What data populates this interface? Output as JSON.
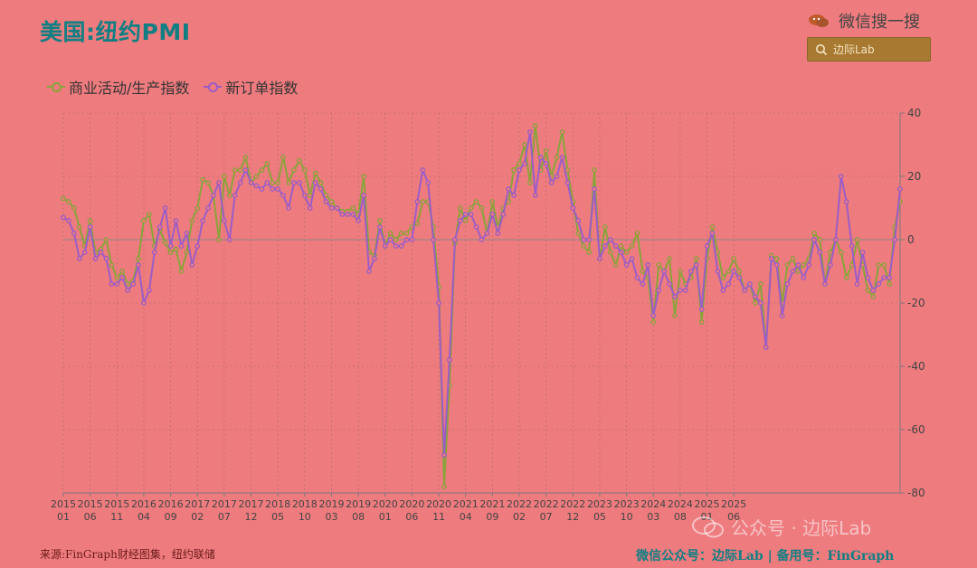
{
  "header": {
    "title": "美国:纽约PMI",
    "wechat_label": "微信搜一搜",
    "search_text": "边际Lab"
  },
  "legend": {
    "series1": "商业活动/生产指数",
    "series2": "新订单指数"
  },
  "footer": {
    "source": "来源:FinGraph财经图集，纽约联储",
    "right": "微信公众号：边际Lab  |  备用号：FinGraph",
    "watermark": "公众号 · 边际Lab"
  },
  "colors": {
    "series1": "#8aa33b",
    "series2": "#9b5dc7",
    "axis": "#7a7a7a",
    "title": "#0f7f83"
  },
  "icons": {
    "search": "search-icon",
    "wechat": "wechat-icon"
  },
  "chart_data": {
    "type": "line",
    "ylim": [
      -80,
      40
    ],
    "yticks": [
      40,
      20,
      0,
      -20,
      -40,
      -60,
      -80
    ],
    "xtick_labels": [
      {
        "year": "2015",
        "month": "01"
      },
      {
        "year": "2015",
        "month": "06"
      },
      {
        "year": "2015",
        "month": "11"
      },
      {
        "year": "2016",
        "month": "04"
      },
      {
        "year": "2016",
        "month": "09"
      },
      {
        "year": "2017",
        "month": "02"
      },
      {
        "year": "2017",
        "month": "07"
      },
      {
        "year": "2017",
        "month": "12"
      },
      {
        "year": "2018",
        "month": "05"
      },
      {
        "year": "2018",
        "month": "10"
      },
      {
        "year": "2019",
        "month": "03"
      },
      {
        "year": "2019",
        "month": "08"
      },
      {
        "year": "2020",
        "month": "01"
      },
      {
        "year": "2020",
        "month": "06"
      },
      {
        "year": "2020",
        "month": "11"
      },
      {
        "year": "2021",
        "month": "04"
      },
      {
        "year": "2021",
        "month": "09"
      },
      {
        "year": "2022",
        "month": "02"
      },
      {
        "year": "2022",
        "month": "07"
      },
      {
        "year": "2022",
        "month": "12"
      },
      {
        "year": "2023",
        "month": "05"
      },
      {
        "year": "2023",
        "month": "10"
      },
      {
        "year": "2024",
        "month": "03"
      },
      {
        "year": "2024",
        "month": "08"
      },
      {
        "year": "2025",
        "month": "01"
      },
      {
        "year": "2025",
        "month": "06"
      }
    ],
    "x_start": "2015-01",
    "series": [
      {
        "name": "商业活动/生产指数",
        "values": [
          13,
          12,
          10,
          4,
          -2,
          6,
          -4,
          -3,
          0,
          -8,
          -12,
          -10,
          -14,
          -13,
          -6,
          6,
          8,
          -2,
          3,
          -1,
          -4,
          -3,
          -10,
          -4,
          6,
          10,
          19,
          18,
          14,
          0,
          20,
          14,
          22,
          22,
          26,
          18,
          20,
          22,
          24,
          18,
          18,
          26,
          18,
          22,
          25,
          22,
          14,
          21,
          18,
          14,
          12,
          10,
          9,
          9,
          10,
          8,
          20,
          -4,
          -5,
          6,
          -2,
          2,
          0,
          2,
          2,
          4,
          5,
          12,
          12,
          4,
          -15,
          -78,
          -46,
          -1,
          10,
          6,
          10,
          12,
          10,
          2,
          12,
          4,
          10,
          12,
          22,
          24,
          30,
          18,
          36,
          22,
          28,
          20,
          26,
          34,
          22,
          12,
          2,
          -2,
          -4,
          22,
          -6,
          4,
          -4,
          -8,
          -2,
          -4,
          -2,
          2,
          -10,
          -12,
          -26,
          -8,
          -10,
          -6,
          -24,
          -10,
          -14,
          -12,
          -6,
          -26,
          -6,
          4,
          -4,
          -12,
          -10,
          -6,
          -10,
          -16,
          -14,
          -20,
          -14,
          -34,
          -5,
          -6,
          -20,
          -8,
          -6,
          -10,
          -8,
          -6,
          2,
          0,
          -14,
          -4,
          0,
          -4,
          -12,
          -8,
          0,
          -8,
          -16,
          -18,
          -8,
          -8,
          -14,
          4,
          12
        ]
      },
      {
        "name": "新订单指数",
        "values": [
          7,
          6,
          2,
          -6,
          -4,
          4,
          -6,
          -4,
          -6,
          -14,
          -14,
          -12,
          -16,
          -14,
          -8,
          -20,
          -16,
          -4,
          4,
          10,
          -2,
          6,
          -2,
          2,
          -8,
          -2,
          6,
          10,
          14,
          18,
          6,
          0,
          14,
          18,
          22,
          18,
          17,
          16,
          18,
          16,
          16,
          14,
          10,
          18,
          18,
          14,
          10,
          18,
          16,
          12,
          10,
          10,
          8,
          8,
          8,
          6,
          14,
          -10,
          -6,
          4,
          -2,
          0,
          -2,
          -2,
          0,
          0,
          12,
          22,
          18,
          0,
          -20,
          -68,
          -38,
          0,
          6,
          8,
          8,
          4,
          0,
          2,
          8,
          2,
          8,
          16,
          14,
          22,
          24,
          34,
          14,
          26,
          24,
          18,
          20,
          26,
          18,
          10,
          6,
          0,
          0,
          16,
          -6,
          -2,
          0,
          -2,
          -4,
          -8,
          -6,
          -12,
          -14,
          -8,
          -24,
          -16,
          -10,
          -14,
          -18,
          -16,
          -16,
          -10,
          -8,
          -22,
          -2,
          2,
          -10,
          -16,
          -14,
          -10,
          -12,
          -16,
          -14,
          -18,
          -20,
          -34,
          -6,
          -8,
          -24,
          -14,
          -10,
          -8,
          -12,
          -8,
          0,
          -4,
          -14,
          -8,
          0,
          20,
          12,
          -2,
          -14,
          -4,
          -12,
          -16,
          -14,
          -12,
          -12,
          0,
          16
        ]
      }
    ]
  }
}
